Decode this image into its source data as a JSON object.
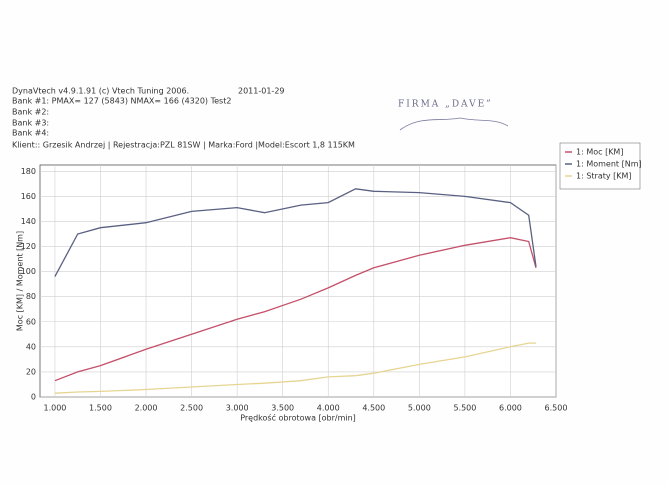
{
  "header": {
    "software": "DynaVtech v4.9.1.91 (c) Vtech Tuning 2006.",
    "date": "2011-01-29",
    "bank1": "Bank #1: PMAX= 127 (5843)   NMAX= 166 (4320)   Test2",
    "bank2": "Bank #2:",
    "bank3": "Bank #3:",
    "bank4": "Bank #4:",
    "client": "Klient:: Grzesik Andrzej | Rejestracja:PZL 81SW | Marka:Ford |Model:Escort 1,8 115KM",
    "stamp": "FIRMA „DAVE”"
  },
  "chart_data": {
    "type": "line",
    "x_label": "Prędkość obrotowa [obr/min]",
    "y_label": "Moc [KM] / Moment [Nm]",
    "x": [
      1000,
      1250,
      1500,
      2000,
      2500,
      3000,
      3300,
      3700,
      4000,
      4300,
      4500,
      5000,
      5500,
      6000,
      6200,
      6280
    ],
    "series": [
      {
        "name": "1: Moc [KM]",
        "color": "#c4506a",
        "values": [
          13,
          20,
          25,
          38,
          50,
          62,
          68,
          78,
          87,
          97,
          103,
          113,
          121,
          127,
          124,
          103
        ]
      },
      {
        "name": "1: Moment [Nm]",
        "color": "#5a6082",
        "values": [
          96,
          130,
          135,
          139,
          148,
          151,
          147,
          153,
          155,
          166,
          164,
          163,
          160,
          155,
          145,
          104
        ]
      },
      {
        "name": "1: Straty [KM]",
        "color": "#e6d592",
        "values": [
          3,
          4,
          4.5,
          6,
          8,
          10,
          11,
          13,
          16,
          17,
          19,
          26,
          32,
          40,
          43,
          43
        ]
      }
    ],
    "xlim": [
      836,
      6500
    ],
    "ylim": [
      0,
      185
    ],
    "xticks": [
      {
        "value": 1000,
        "label": "1.000"
      },
      {
        "value": 1500,
        "label": "1.500"
      },
      {
        "value": 2000,
        "label": "2.000"
      },
      {
        "value": 2500,
        "label": "2.500"
      },
      {
        "value": 3000,
        "label": "3.000"
      },
      {
        "value": 3500,
        "label": "3.500"
      },
      {
        "value": 4000,
        "label": "4.000"
      },
      {
        "value": 4500,
        "label": "4.500"
      },
      {
        "value": 5000,
        "label": "5.000"
      },
      {
        "value": 5500,
        "label": "5.500"
      },
      {
        "value": 6000,
        "label": "6.000"
      },
      {
        "value": 6500,
        "label": "6.500"
      }
    ],
    "yticks": [
      0,
      20,
      40,
      60,
      80,
      100,
      120,
      140,
      160,
      180
    ],
    "grid": true,
    "legend": "right"
  }
}
